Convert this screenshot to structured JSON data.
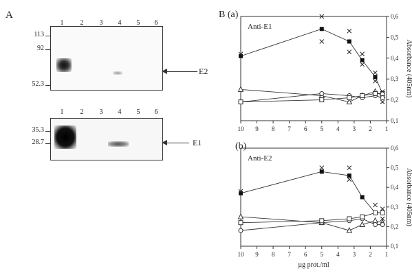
{
  "panel_a": {
    "label": "A",
    "lanes": [
      "1",
      "2",
      "3",
      "4",
      "5",
      "6"
    ],
    "blot_top": {
      "markers": [
        "113",
        "92",
        "52.3"
      ],
      "band_label": "E2"
    },
    "blot_bottom": {
      "markers": [
        "35.3",
        "28.7"
      ],
      "band_label": "E1"
    }
  },
  "panel_b": {
    "label": "B (a)",
    "sub_b_label": "(b)"
  },
  "chart_data": [
    {
      "type": "line",
      "title": "Anti-E1",
      "xlabel": "",
      "ylabel": "Absorbance (405nm)",
      "x_reversed": true,
      "xlim": [
        10,
        1
      ],
      "ylim": [
        0.1,
        0.6
      ],
      "x_ticks": [
        "10",
        "9",
        "8",
        "7",
        "6",
        "5",
        "4",
        "3",
        "2",
        "1"
      ],
      "y_ticks": [
        "0,1",
        "0,2",
        "0,3",
        "0,4",
        "0,5",
        "0,6"
      ],
      "series": [
        {
          "marker": "filled-square",
          "x": [
            10,
            5,
            3.3,
            2.5,
            1.7,
            1.25
          ],
          "y": [
            0.41,
            0.54,
            0.48,
            0.39,
            0.31,
            0.23
          ]
        },
        {
          "marker": "triangle",
          "x": [
            10,
            5,
            3.3,
            2.5,
            1.7,
            1.25
          ],
          "y": [
            0.25,
            0.22,
            0.19,
            0.22,
            0.24,
            0.22
          ]
        },
        {
          "marker": "circle",
          "x": [
            10,
            5,
            3.3,
            2.5,
            1.7,
            1.25
          ],
          "y": [
            0.19,
            0.23,
            0.22,
            0.21,
            0.22,
            0.21
          ]
        },
        {
          "marker": "square",
          "x": [
            10,
            5,
            3.3,
            2.5,
            1.7,
            1.25
          ],
          "y": [
            0.19,
            0.2,
            0.21,
            0.22,
            0.23,
            0.23
          ]
        }
      ],
      "crosses": {
        "x": [
          10,
          5,
          5,
          3.3,
          3.3,
          2.5,
          2.5,
          1.7,
          1.7,
          1.25,
          1.25
        ],
        "y": [
          0.42,
          0.6,
          0.48,
          0.53,
          0.43,
          0.42,
          0.37,
          0.33,
          0.29,
          0.24,
          0.19
        ]
      }
    },
    {
      "type": "line",
      "title": "Anti-E2",
      "xlabel": "µg prot./ml",
      "ylabel": "Absorbance (405nm)",
      "x_reversed": true,
      "xlim": [
        10,
        1
      ],
      "ylim": [
        0.1,
        0.6
      ],
      "x_ticks": [
        "10",
        "9",
        "8",
        "7",
        "6",
        "5",
        "4",
        "3",
        "2",
        "1"
      ],
      "y_ticks": [
        "0,1",
        "0,2",
        "0,3",
        "0,4",
        "0,5",
        "0,6"
      ],
      "series": [
        {
          "marker": "filled-square",
          "x": [
            10,
            5,
            3.3,
            2.5,
            1.7,
            1.25
          ],
          "y": [
            0.37,
            0.48,
            0.46,
            0.35,
            0.27,
            0.27
          ]
        },
        {
          "marker": "triangle",
          "x": [
            10,
            5,
            3.3,
            2.5,
            1.7,
            1.25
          ],
          "y": [
            0.25,
            0.22,
            0.18,
            0.21,
            0.23,
            0.22
          ]
        },
        {
          "marker": "circle",
          "x": [
            10,
            5,
            3.3,
            2.5,
            1.7,
            1.25
          ],
          "y": [
            0.18,
            0.22,
            0.23,
            0.24,
            0.21,
            0.21
          ]
        },
        {
          "marker": "square",
          "x": [
            10,
            5,
            3.3,
            2.5,
            1.7,
            1.25
          ],
          "y": [
            0.22,
            0.23,
            0.24,
            0.25,
            0.27,
            0.27
          ]
        }
      ],
      "crosses": {
        "x": [
          10,
          5,
          3.3,
          3.3,
          1.7,
          1.25,
          1.25
        ],
        "y": [
          0.38,
          0.5,
          0.5,
          0.44,
          0.31,
          0.29,
          0.24
        ]
      }
    }
  ]
}
